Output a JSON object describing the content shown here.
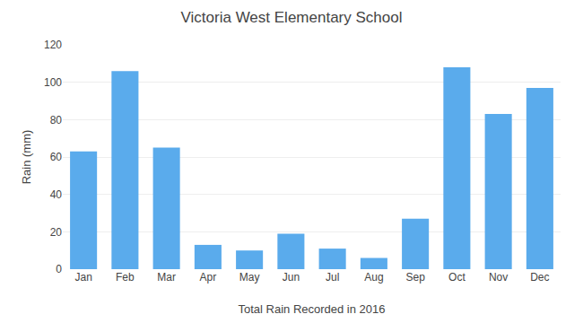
{
  "chart_data": {
    "type": "bar",
    "title": "Victoria West Elementary School",
    "xlabel": "Total Rain Recorded in 2016",
    "ylabel": "Rain (mm)",
    "categories": [
      "Jan",
      "Feb",
      "Mar",
      "Apr",
      "May",
      "Jun",
      "Jul",
      "Aug",
      "Sep",
      "Oct",
      "Nov",
      "Dec"
    ],
    "values": [
      63,
      106,
      65,
      13,
      10,
      19,
      11,
      6,
      27,
      108,
      83,
      97
    ],
    "color": "#5aabec",
    "ylim": [
      0,
      120
    ],
    "yticks": [
      0,
      20,
      40,
      60,
      80,
      100,
      120
    ],
    "grid": true
  }
}
